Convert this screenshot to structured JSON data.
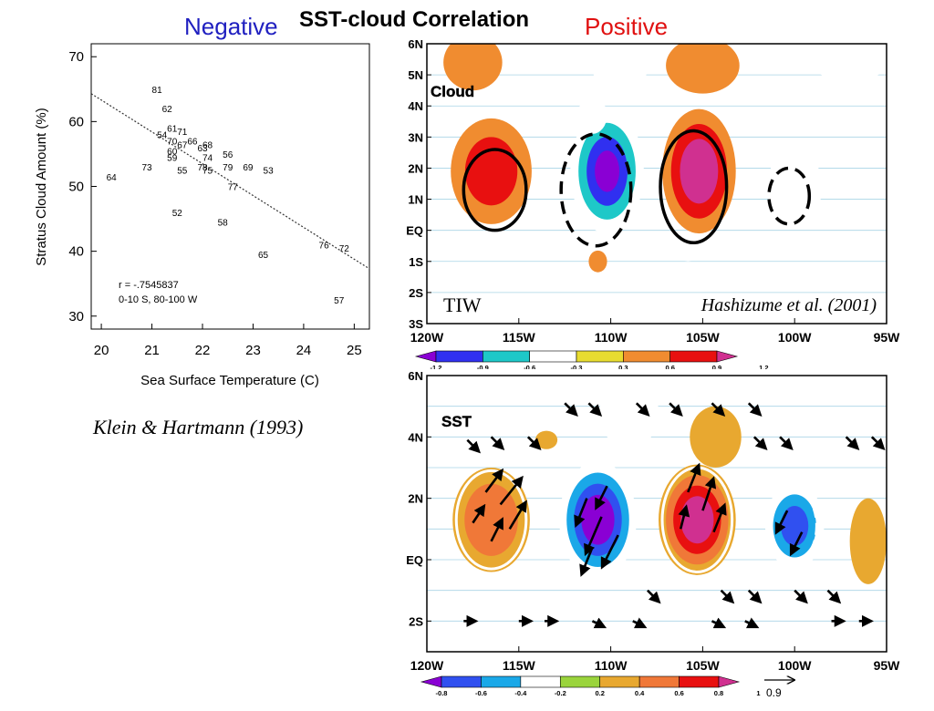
{
  "header": {
    "title": "SST-cloud Correlation",
    "negative_label": "Negative",
    "positive_label": "Positive",
    "negative_color": "#2020c0",
    "positive_color": "#e01010"
  },
  "scatter_citation": "Klein & Hartmann (1993)",
  "map_citation": "Hashizume et al. (2001)",
  "chart_data": [
    {
      "type": "scatter",
      "xlabel": "Sea Surface Temperature (C)",
      "ylabel": "Stratus Cloud Amount (%)",
      "xlim": [
        19.8,
        25.3
      ],
      "ylim": [
        28,
        72
      ],
      "xticks": [
        20,
        21,
        22,
        23,
        24,
        25
      ],
      "yticks": [
        30,
        40,
        50,
        60,
        70
      ],
      "annotation_r": "r = -.7545837",
      "annotation_region": "0-10 S, 80-100 W",
      "trend_line": {
        "x": [
          19.8,
          25.3
        ],
        "y": [
          64.3,
          37.3
        ]
      },
      "points": [
        {
          "label": "81",
          "x": 21.1,
          "y": 65
        },
        {
          "label": "62",
          "x": 21.3,
          "y": 62
        },
        {
          "label": "54",
          "x": 21.2,
          "y": 58
        },
        {
          "label": "61",
          "x": 21.4,
          "y": 59
        },
        {
          "label": "71",
          "x": 21.6,
          "y": 58.5
        },
        {
          "label": "70",
          "x": 21.4,
          "y": 57
        },
        {
          "label": "67",
          "x": 21.6,
          "y": 56.5
        },
        {
          "label": "66",
          "x": 21.8,
          "y": 57
        },
        {
          "label": "68",
          "x": 22.1,
          "y": 56.5
        },
        {
          "label": "63",
          "x": 22.0,
          "y": 56
        },
        {
          "label": "60",
          "x": 21.4,
          "y": 55.5
        },
        {
          "label": "59",
          "x": 21.4,
          "y": 54.5
        },
        {
          "label": "74",
          "x": 22.1,
          "y": 54.5
        },
        {
          "label": "56",
          "x": 22.5,
          "y": 55
        },
        {
          "label": "73",
          "x": 20.9,
          "y": 53
        },
        {
          "label": "55",
          "x": 21.6,
          "y": 52.5
        },
        {
          "label": "78",
          "x": 22.0,
          "y": 53
        },
        {
          "label": "75",
          "x": 22.1,
          "y": 52.5
        },
        {
          "label": "79",
          "x": 22.5,
          "y": 53
        },
        {
          "label": "69",
          "x": 22.9,
          "y": 53
        },
        {
          "label": "53",
          "x": 23.3,
          "y": 52.5
        },
        {
          "label": "64",
          "x": 20.2,
          "y": 51.5
        },
        {
          "label": "77",
          "x": 22.6,
          "y": 50
        },
        {
          "label": "52",
          "x": 21.5,
          "y": 46
        },
        {
          "label": "58",
          "x": 22.4,
          "y": 44.5
        },
        {
          "label": "76",
          "x": 24.4,
          "y": 41
        },
        {
          "label": "72",
          "x": 24.8,
          "y": 40.5
        },
        {
          "label": "65",
          "x": 23.2,
          "y": 39.5
        },
        {
          "label": "57",
          "x": 24.7,
          "y": 32.5
        }
      ]
    },
    {
      "type": "heatmap",
      "title": "Cloud",
      "panel_label": "TIW",
      "xlabels": [
        "120W",
        "115W",
        "110W",
        "105W",
        "100W",
        "95W"
      ],
      "ylabels": [
        "6N",
        "5N",
        "4N",
        "3N",
        "2N",
        "1N",
        "EQ",
        "1S",
        "2S",
        "3S"
      ],
      "xlim": [
        -120,
        -95
      ],
      "ylim": [
        -3,
        6
      ],
      "colorbar_ticks": [
        "-1.2",
        "-0.9",
        "-0.6",
        "-0.3",
        "0.3",
        "0.6",
        "0.9",
        "1.2"
      ],
      "colorbar_colors": [
        "#8a00d4",
        "#3030f0",
        "#1ec8c8",
        "#ffffff",
        "#e8dc30",
        "#f08c30",
        "#e81010",
        "#d03090"
      ],
      "anomalies": [
        {
          "lon": -116.5,
          "lat": 1.9,
          "value": 0.7,
          "rx": 2.2,
          "ry": 1.7
        },
        {
          "lon": -110.2,
          "lat": 1.9,
          "value": -1.2,
          "rx": 2.0,
          "ry": 2.0
        },
        {
          "lon": -105.2,
          "lat": 1.9,
          "value": 1.1,
          "rx": 2.0,
          "ry": 2.0
        },
        {
          "lon": -100.0,
          "lat": 1.4,
          "value": -0.55,
          "rx": 1.5,
          "ry": 1.2
        },
        {
          "lon": -117.5,
          "lat": 5.4,
          "value": 0.4,
          "rx": 1.6,
          "ry": 0.9
        },
        {
          "lon": -109.5,
          "lat": 5.3,
          "value": -0.5,
          "rx": 1.5,
          "ry": 1.0
        },
        {
          "lon": -105.0,
          "lat": 5.3,
          "value": 0.5,
          "rx": 2.0,
          "ry": 0.9
        },
        {
          "lon": -97.0,
          "lat": 5.5,
          "value": -0.5,
          "rx": 2.2,
          "ry": 0.7
        },
        {
          "lon": -111.0,
          "lat": 3.7,
          "value": -0.4,
          "rx": 0.8,
          "ry": 0.6
        },
        {
          "lon": -105.8,
          "lat": -0.6,
          "value": -0.4,
          "rx": 0.6,
          "ry": 0.4
        },
        {
          "lon": -110.7,
          "lat": -1.0,
          "value": 0.4,
          "rx": 0.5,
          "ry": 0.35
        }
      ],
      "sst_contours": [
        {
          "lon": -116.3,
          "lat": 1.3,
          "rx": 1.7,
          "ry": 1.3,
          "sign": "positive"
        },
        {
          "lon": -110.8,
          "lat": 1.3,
          "rx": 1.9,
          "ry": 1.8,
          "sign": "negative"
        },
        {
          "lon": -105.5,
          "lat": 1.4,
          "rx": 1.8,
          "ry": 1.8,
          "sign": "positive"
        },
        {
          "lon": -100.3,
          "lat": 1.1,
          "rx": 1.1,
          "ry": 0.9,
          "sign": "negative"
        }
      ]
    },
    {
      "type": "heatmap",
      "title": "SST",
      "xlabels": [
        "120W",
        "115W",
        "110W",
        "105W",
        "100W",
        "95W"
      ],
      "ylabels": [
        "6N",
        "4N",
        "2N",
        "EQ",
        "2S"
      ],
      "xlim": [
        -120,
        -95
      ],
      "ylim": [
        -3,
        6
      ],
      "colorbar_ticks": [
        "-0.8",
        "-0.6",
        "-0.4",
        "-0.2",
        "0.2",
        "0.4",
        "0.6",
        "0.8",
        "1"
      ],
      "colorbar_colors": [
        "#8a00d4",
        "#3050f0",
        "#1aa8e8",
        "#ffffff",
        "#9ad43c",
        "#e8a830",
        "#f07838",
        "#e81010",
        "#d03090"
      ],
      "vector_scale_label": "0.9",
      "anomalies": [
        {
          "lon": -116.5,
          "lat": 1.3,
          "value": 0.5,
          "rx": 2.1,
          "ry": 1.7
        },
        {
          "lon": -110.7,
          "lat": 1.3,
          "value": -0.9,
          "rx": 2.1,
          "ry": 1.9
        },
        {
          "lon": -105.3,
          "lat": 1.3,
          "value": 0.9,
          "rx": 2.1,
          "ry": 1.8
        },
        {
          "lon": -100.0,
          "lat": 1.1,
          "value": -0.6,
          "rx": 1.6,
          "ry": 1.4
        },
        {
          "lon": -109.0,
          "lat": 4.8,
          "value": -0.3,
          "rx": 1.6,
          "ry": 1.2
        },
        {
          "lon": -104.3,
          "lat": 4.0,
          "value": 0.3,
          "rx": 1.4,
          "ry": 1.0
        },
        {
          "lon": -96.0,
          "lat": 0.6,
          "value": 0.3,
          "rx": 1.0,
          "ry": 1.4
        },
        {
          "lon": -113.5,
          "lat": 3.9,
          "value": 0.3,
          "rx": 0.6,
          "ry": 0.3
        }
      ],
      "white_contours": [
        {
          "lon": -116.5,
          "lat": 1.3,
          "rx": 1.9,
          "ry": 1.6,
          "sign": "positive"
        },
        {
          "lon": -110.7,
          "lat": 1.3,
          "rx": 1.9,
          "ry": 1.7,
          "sign": "negative"
        },
        {
          "lon": -105.3,
          "lat": 1.3,
          "rx": 1.9,
          "ry": 1.7,
          "sign": "positive"
        },
        {
          "lon": -100.1,
          "lat": 1.1,
          "rx": 1.3,
          "ry": 1.2,
          "sign": "negative"
        }
      ],
      "wind_vectors": [
        {
          "lon": -116.8,
          "lat": 2.2,
          "u": 0.3,
          "v": 0.4
        },
        {
          "lon": -116.0,
          "lat": 1.8,
          "u": 0.4,
          "v": 0.5
        },
        {
          "lon": -115.5,
          "lat": 1.0,
          "u": 0.3,
          "v": 0.5
        },
        {
          "lon": -117.5,
          "lat": 1.2,
          "u": 0.2,
          "v": 0.3
        },
        {
          "lon": -116.5,
          "lat": 0.6,
          "u": 0.2,
          "v": 0.4
        },
        {
          "lon": -111.3,
          "lat": 2.0,
          "u": -0.2,
          "v": -0.5
        },
        {
          "lon": -110.5,
          "lat": 1.4,
          "u": -0.3,
          "v": -0.7
        },
        {
          "lon": -109.6,
          "lat": 0.8,
          "u": -0.3,
          "v": -0.6
        },
        {
          "lon": -111.0,
          "lat": 0.4,
          "u": -0.2,
          "v": -0.5
        },
        {
          "lon": -110.2,
          "lat": 2.4,
          "u": -0.2,
          "v": -0.4
        },
        {
          "lon": -105.8,
          "lat": 2.2,
          "u": 0.2,
          "v": 0.5
        },
        {
          "lon": -105.0,
          "lat": 1.6,
          "u": 0.2,
          "v": 0.6
        },
        {
          "lon": -104.4,
          "lat": 0.9,
          "u": 0.2,
          "v": 0.5
        },
        {
          "lon": -106.2,
          "lat": 1.0,
          "u": 0.1,
          "v": 0.4
        },
        {
          "lon": -100.4,
          "lat": 1.6,
          "u": -0.2,
          "v": -0.4
        },
        {
          "lon": -99.6,
          "lat": 0.9,
          "u": -0.2,
          "v": -0.4
        },
        {
          "lon": -112.5,
          "lat": 5.1,
          "u": 0.2,
          "v": -0.2
        },
        {
          "lon": -111.2,
          "lat": 5.1,
          "u": 0.2,
          "v": -0.2
        },
        {
          "lon": -108.6,
          "lat": 5.1,
          "u": 0.2,
          "v": -0.2
        },
        {
          "lon": -106.8,
          "lat": 5.1,
          "u": 0.2,
          "v": -0.2
        },
        {
          "lon": -104.5,
          "lat": 5.1,
          "u": 0.2,
          "v": -0.2
        },
        {
          "lon": -102.5,
          "lat": 5.1,
          "u": 0.2,
          "v": -0.2
        },
        {
          "lon": -114.5,
          "lat": 4.0,
          "u": 0.2,
          "v": -0.2
        },
        {
          "lon": -116.5,
          "lat": 4.0,
          "u": 0.2,
          "v": -0.2
        },
        {
          "lon": -117.8,
          "lat": 3.9,
          "u": 0.2,
          "v": -0.2
        },
        {
          "lon": -102.2,
          "lat": 4.0,
          "u": 0.2,
          "v": -0.2
        },
        {
          "lon": -100.8,
          "lat": 4.0,
          "u": 0.2,
          "v": -0.2
        },
        {
          "lon": -97.2,
          "lat": 4.0,
          "u": 0.2,
          "v": -0.2
        },
        {
          "lon": -95.8,
          "lat": 4.0,
          "u": 0.2,
          "v": -0.2
        },
        {
          "lon": -108.0,
          "lat": -1.0,
          "u": 0.2,
          "v": -0.2
        },
        {
          "lon": -104.0,
          "lat": -1.0,
          "u": 0.2,
          "v": -0.2
        },
        {
          "lon": -102.5,
          "lat": -1.0,
          "u": 0.2,
          "v": -0.2
        },
        {
          "lon": -100.0,
          "lat": -1.0,
          "u": 0.2,
          "v": -0.2
        },
        {
          "lon": -98.2,
          "lat": -1.0,
          "u": 0.2,
          "v": -0.2
        },
        {
          "lon": -118.0,
          "lat": -2.0,
          "u": 0.2,
          "v": 0.0
        },
        {
          "lon": -115.0,
          "lat": -2.0,
          "u": 0.2,
          "v": 0.0
        },
        {
          "lon": -113.6,
          "lat": -2.0,
          "u": 0.2,
          "v": 0.0
        },
        {
          "lon": -111.0,
          "lat": -2.0,
          "u": 0.2,
          "v": -0.1
        },
        {
          "lon": -108.8,
          "lat": -2.0,
          "u": 0.2,
          "v": -0.1
        },
        {
          "lon": -104.5,
          "lat": -2.0,
          "u": 0.2,
          "v": -0.1
        },
        {
          "lon": -102.7,
          "lat": -2.0,
          "u": 0.2,
          "v": -0.1
        },
        {
          "lon": -98.0,
          "lat": -2.0,
          "u": 0.2,
          "v": 0.0
        },
        {
          "lon": -96.5,
          "lat": -2.0,
          "u": 0.2,
          "v": 0.0
        }
      ]
    }
  ]
}
